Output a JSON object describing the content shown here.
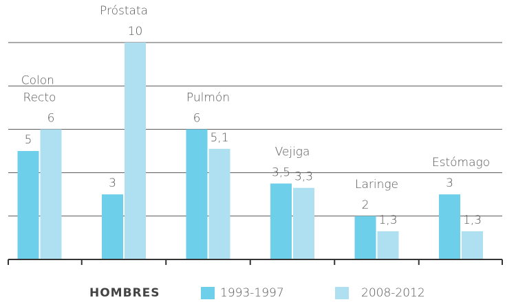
{
  "chart_data": {
    "type": "bar",
    "categories": [
      "Colon Recto",
      "Próstata",
      "Pulmón",
      "Vejiga",
      "Laringe",
      "Estómago"
    ],
    "series": [
      {
        "name": "1993-1997",
        "color": "#6dcfe9",
        "values": [
          5,
          3,
          6,
          3.5,
          2,
          3
        ],
        "value_labels": [
          "5",
          "3",
          "6",
          "3,5",
          "2",
          "3"
        ]
      },
      {
        "name": "2008-2012",
        "color": "#aee0f2",
        "values": [
          6,
          10,
          5.1,
          3.3,
          1.3,
          1.3
        ],
        "value_labels": [
          "6",
          "10",
          "5,1",
          "3,3",
          "1,3",
          "1,3"
        ]
      }
    ],
    "legend_title": "HOMBRES",
    "ylim": [
      0,
      10
    ],
    "yticks": [
      2,
      4,
      6,
      8,
      10
    ],
    "grid": true
  }
}
